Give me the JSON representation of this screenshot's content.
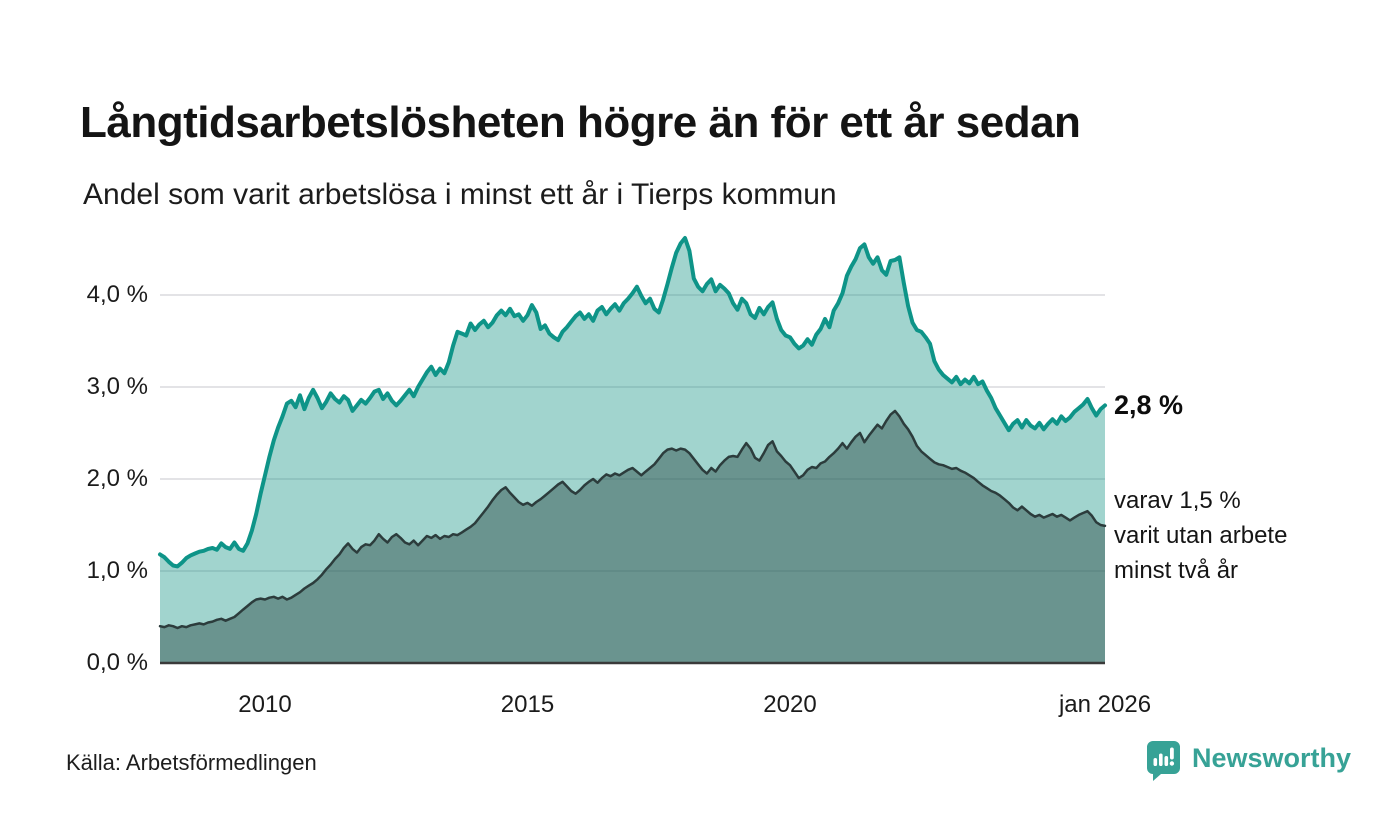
{
  "header": {
    "title": "Långtidsarbetslösheten högre än för ett år sedan",
    "subtitle": "Andel som varit arbetslösa i minst ett år i Tierps kommun"
  },
  "annotations": {
    "latest_value": "2,8 %",
    "secondary_line1": "varav 1,5 %",
    "secondary_line2": "varit utan arbete",
    "secondary_line3": "minst två år"
  },
  "footer": {
    "source": "Källa: Arbetsförmedlingen",
    "brand": "Newsworthy"
  },
  "colors": {
    "accent_teal": "#0e9488",
    "area_teal_fill": "rgba(20,147,132,0.40)",
    "dark_line": "#2c3c3c",
    "area_dark_fill": "rgba(44,76,72,0.47)",
    "gridline": "#e3e3e6",
    "axis_line": "#3a3a3a",
    "brand_teal": "#37a296",
    "text": "#141414"
  },
  "chart_data": {
    "type": "area",
    "title": "Långtidsarbetslösheten högre än för ett år sedan",
    "subtitle": "Andel som varit arbetslösa i minst ett år i Tierps kommun",
    "unit": "%",
    "grid": true,
    "legend_position": "right-edge-annotations",
    "x_axis": {
      "start": 2008.0,
      "end": 2026.0,
      "ticks": [
        {
          "label": "2010",
          "t": 2010
        },
        {
          "label": "2015",
          "t": 2015
        },
        {
          "label": "2020",
          "t": 2020
        },
        {
          "label": "jan 2026",
          "t": 2026.0
        }
      ]
    },
    "y_axis": {
      "min": 0,
      "max": 4.8,
      "ticks": [
        {
          "label": "0,0 %",
          "v": 0
        },
        {
          "label": "1,0 %",
          "v": 1
        },
        {
          "label": "2,0 %",
          "v": 2
        },
        {
          "label": "3,0 %",
          "v": 3
        },
        {
          "label": "4,0 %",
          "v": 4
        }
      ]
    },
    "series": [
      {
        "name": "Andel arbetslösa minst ett år",
        "end_label": "2,8 %",
        "line_color": "#0e9488",
        "fill_color": "rgba(20,147,132,0.40)",
        "start_year": 2008,
        "points_per_year": 12,
        "values": [
          1.18,
          1.15,
          1.1,
          1.06,
          1.05,
          1.09,
          1.14,
          1.17,
          1.19,
          1.21,
          1.22,
          1.24,
          1.25,
          1.23,
          1.3,
          1.26,
          1.24,
          1.31,
          1.24,
          1.22,
          1.3,
          1.44,
          1.62,
          1.84,
          2.04,
          2.24,
          2.42,
          2.56,
          2.68,
          2.82,
          2.85,
          2.78,
          2.91,
          2.76,
          2.88,
          2.97,
          2.88,
          2.77,
          2.84,
          2.93,
          2.87,
          2.83,
          2.9,
          2.86,
          2.74,
          2.8,
          2.86,
          2.82,
          2.88,
          2.95,
          2.97,
          2.87,
          2.93,
          2.85,
          2.8,
          2.85,
          2.91,
          2.97,
          2.9,
          3.0,
          3.08,
          3.16,
          3.22,
          3.13,
          3.2,
          3.15,
          3.27,
          3.45,
          3.6,
          3.58,
          3.56,
          3.69,
          3.62,
          3.68,
          3.72,
          3.65,
          3.7,
          3.78,
          3.83,
          3.78,
          3.85,
          3.77,
          3.79,
          3.72,
          3.78,
          3.89,
          3.81,
          3.63,
          3.67,
          3.58,
          3.54,
          3.51,
          3.6,
          3.65,
          3.71,
          3.77,
          3.81,
          3.74,
          3.79,
          3.72,
          3.83,
          3.87,
          3.79,
          3.85,
          3.9,
          3.83,
          3.91,
          3.96,
          4.02,
          4.09,
          3.99,
          3.91,
          3.96,
          3.85,
          3.81,
          3.95,
          4.12,
          4.3,
          4.46,
          4.56,
          4.62,
          4.48,
          4.18,
          4.09,
          4.04,
          4.12,
          4.17,
          4.04,
          4.11,
          4.07,
          4.02,
          3.91,
          3.84,
          3.96,
          3.91,
          3.79,
          3.75,
          3.86,
          3.79,
          3.87,
          3.92,
          3.74,
          3.62,
          3.56,
          3.54,
          3.47,
          3.42,
          3.45,
          3.52,
          3.46,
          3.57,
          3.63,
          3.74,
          3.65,
          3.83,
          3.91,
          4.02,
          4.21,
          4.31,
          4.39,
          4.51,
          4.55,
          4.41,
          4.34,
          4.41,
          4.27,
          4.22,
          4.37,
          4.38,
          4.41,
          4.13,
          3.88,
          3.7,
          3.62,
          3.6,
          3.54,
          3.47,
          3.28,
          3.19,
          3.13,
          3.09,
          3.05,
          3.11,
          3.03,
          3.08,
          3.04,
          3.11,
          3.03,
          3.06,
          2.96,
          2.88,
          2.77,
          2.69,
          2.61,
          2.53,
          2.6,
          2.64,
          2.56,
          2.64,
          2.58,
          2.55,
          2.61,
          2.54,
          2.6,
          2.65,
          2.6,
          2.68,
          2.63,
          2.67,
          2.73,
          2.77,
          2.81,
          2.87,
          2.77,
          2.69,
          2.76,
          2.8
        ]
      },
      {
        "name": "varav arbetslösa minst två år",
        "end_label": "varav 1,5 % varit utan arbete minst två år",
        "line_color": "#2c3c3c",
        "fill_color": "rgba(44,76,72,0.47)",
        "start_year": 2008,
        "points_per_year": 12,
        "values": [
          0.4,
          0.39,
          0.41,
          0.4,
          0.38,
          0.4,
          0.39,
          0.41,
          0.42,
          0.43,
          0.42,
          0.44,
          0.45,
          0.47,
          0.48,
          0.46,
          0.48,
          0.5,
          0.54,
          0.58,
          0.62,
          0.66,
          0.69,
          0.7,
          0.69,
          0.71,
          0.72,
          0.7,
          0.72,
          0.69,
          0.71,
          0.74,
          0.77,
          0.81,
          0.84,
          0.87,
          0.91,
          0.96,
          1.02,
          1.07,
          1.13,
          1.18,
          1.25,
          1.3,
          1.24,
          1.2,
          1.26,
          1.29,
          1.28,
          1.33,
          1.4,
          1.35,
          1.31,
          1.37,
          1.4,
          1.36,
          1.31,
          1.29,
          1.33,
          1.28,
          1.33,
          1.38,
          1.36,
          1.39,
          1.35,
          1.38,
          1.37,
          1.4,
          1.39,
          1.42,
          1.45,
          1.48,
          1.52,
          1.58,
          1.64,
          1.7,
          1.77,
          1.83,
          1.88,
          1.91,
          1.85,
          1.8,
          1.75,
          1.72,
          1.74,
          1.71,
          1.75,
          1.78,
          1.82,
          1.86,
          1.9,
          1.94,
          1.97,
          1.92,
          1.87,
          1.84,
          1.88,
          1.93,
          1.97,
          2.0,
          1.96,
          2.01,
          2.05,
          2.03,
          2.06,
          2.04,
          2.07,
          2.1,
          2.12,
          2.08,
          2.04,
          2.08,
          2.12,
          2.16,
          2.22,
          2.28,
          2.32,
          2.33,
          2.31,
          2.33,
          2.32,
          2.28,
          2.22,
          2.16,
          2.1,
          2.06,
          2.12,
          2.08,
          2.15,
          2.2,
          2.24,
          2.25,
          2.24,
          2.32,
          2.39,
          2.33,
          2.23,
          2.2,
          2.28,
          2.37,
          2.41,
          2.3,
          2.25,
          2.19,
          2.15,
          2.08,
          2.01,
          2.04,
          2.1,
          2.13,
          2.12,
          2.17,
          2.19,
          2.24,
          2.28,
          2.33,
          2.39,
          2.33,
          2.4,
          2.46,
          2.5,
          2.4,
          2.47,
          2.53,
          2.59,
          2.55,
          2.63,
          2.7,
          2.74,
          2.68,
          2.6,
          2.54,
          2.46,
          2.36,
          2.3,
          2.26,
          2.22,
          2.18,
          2.16,
          2.15,
          2.13,
          2.11,
          2.12,
          2.09,
          2.07,
          2.04,
          2.01,
          1.97,
          1.93,
          1.9,
          1.87,
          1.85,
          1.82,
          1.78,
          1.74,
          1.69,
          1.66,
          1.7,
          1.66,
          1.62,
          1.59,
          1.61,
          1.58,
          1.6,
          1.62,
          1.59,
          1.61,
          1.58,
          1.55,
          1.58,
          1.61,
          1.63,
          1.65,
          1.6,
          1.53,
          1.5,
          1.49
        ]
      }
    ]
  }
}
